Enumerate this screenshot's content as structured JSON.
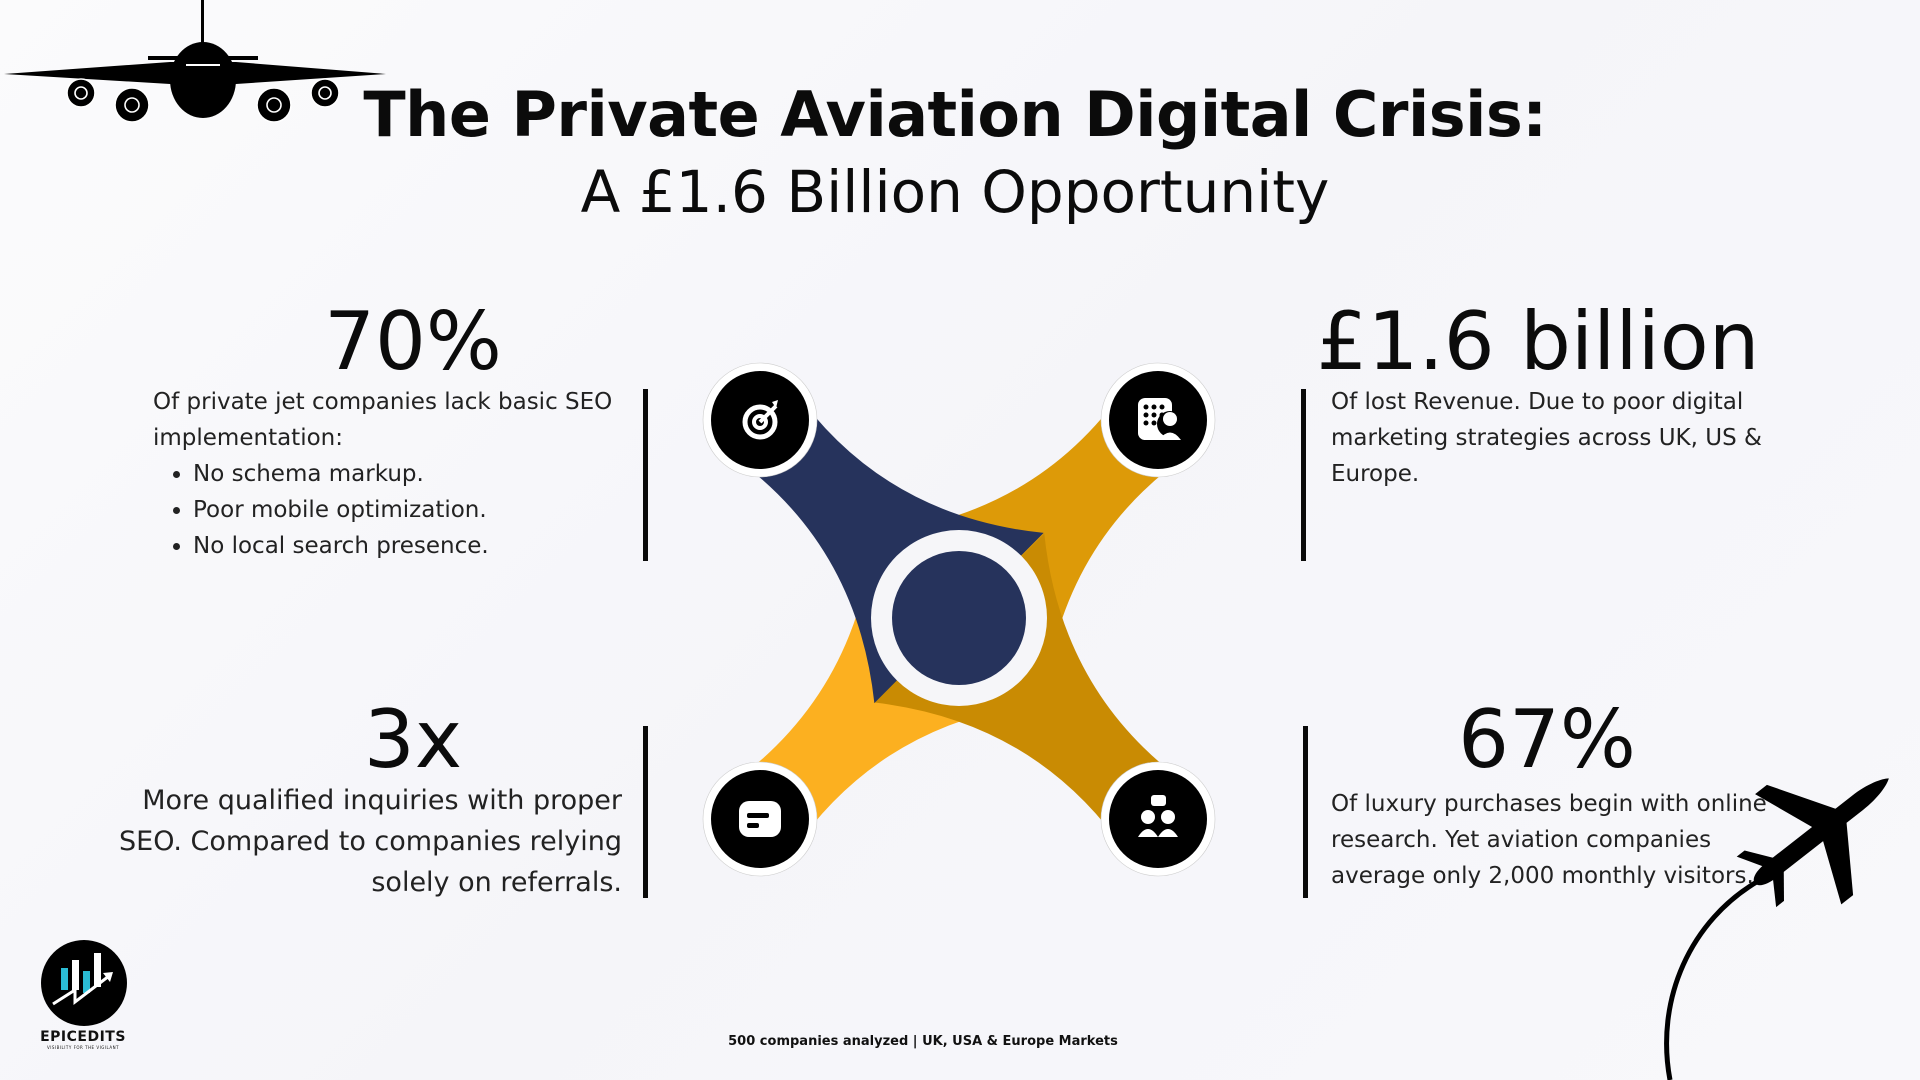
{
  "title": {
    "line1": "The Private Aviation Digital Crisis:",
    "line2": "A £1.6 Billion Opportunity"
  },
  "stats": [
    {
      "value": "70%",
      "text": "Of private jet companies lack basic SEO implementation:",
      "bullets": [
        "No schema markup.",
        "Poor mobile optimization.",
        "No local search presence."
      ]
    },
    {
      "value": "£1.6 billion",
      "text": "Of lost Revenue. Due to poor digital marketing strategies across UK, US & Europe."
    },
    {
      "value": "3x",
      "lines": [
        "More qualified inquiries with proper",
        "SEO. Compared to companies relying",
        "solely on referrals."
      ]
    },
    {
      "value": "67%",
      "text": "Of luxury purchases begin with online research. Yet aviation companies average only 2,000 monthly visitors."
    }
  ],
  "diagram": {
    "colors": {
      "navy": "#26335c",
      "orange": "#dd9a08",
      "yellow": "#fcb020",
      "gold": "#c98b03",
      "icon_bg": "#000000"
    },
    "icons": [
      "target-icon",
      "contact-directory-icon",
      "chat-message-icon",
      "team-icon"
    ]
  },
  "logo": {
    "name": "EPICEDITS",
    "tagline": "VISIBILITY FOR THE VIGILANT",
    "accent": "#2bbcd4"
  },
  "footer": "500 companies analyzed | UK, USA & Europe Markets"
}
